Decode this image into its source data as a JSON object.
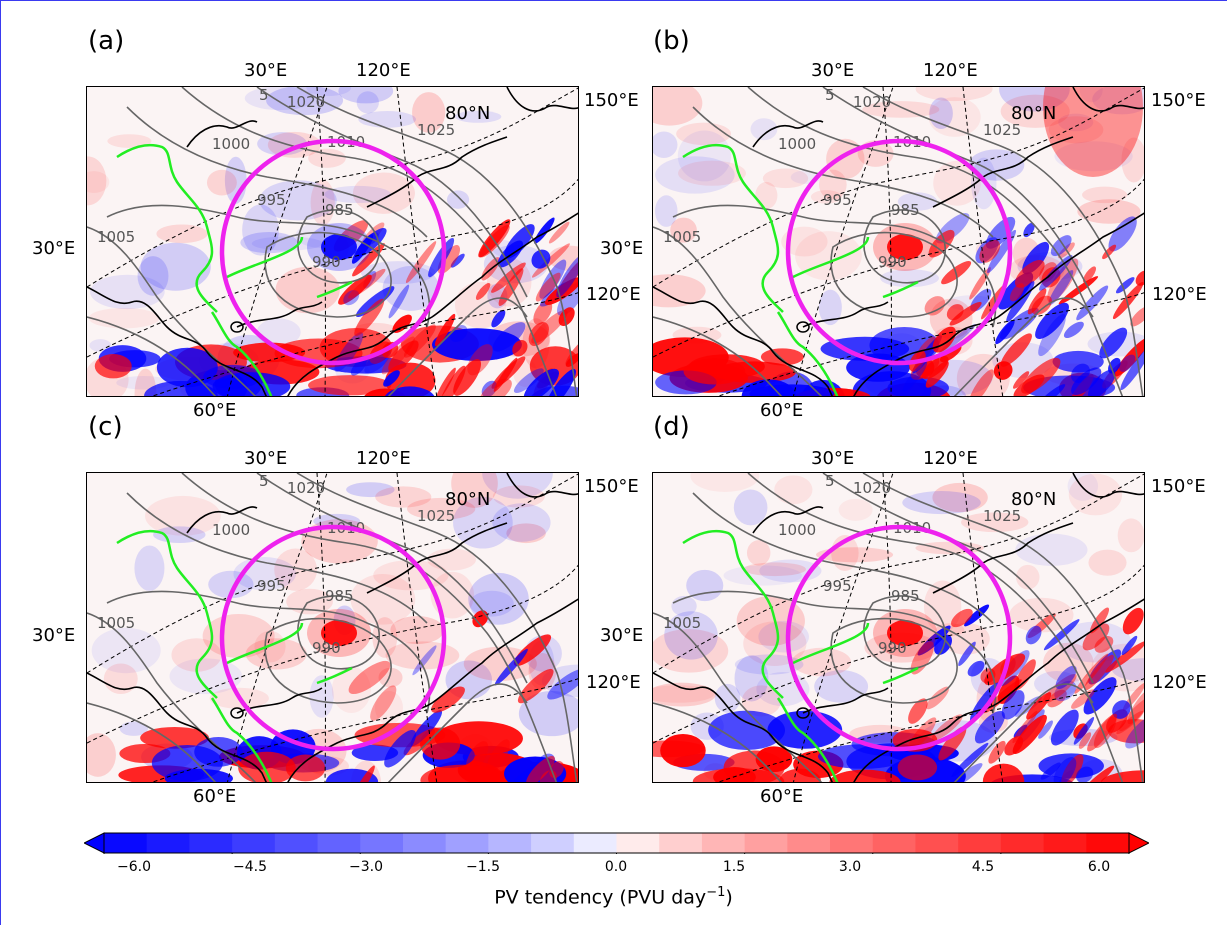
{
  "panels": [
    {
      "label": "(a)",
      "variant": 0
    },
    {
      "label": "(b)",
      "variant": 1
    },
    {
      "label": "(c)",
      "variant": 2
    },
    {
      "label": "(d)",
      "variant": 3
    }
  ],
  "lon_labels": {
    "top_left": "30°E",
    "top_mid": "120°E",
    "top_right": "150°E",
    "left": "30°E",
    "right": "120°E",
    "bottom": "60°E"
  },
  "lat_label": "80°N",
  "isobar_labels": [
    "1020",
    "1025",
    "1010",
    "1000",
    "995",
    "985",
    "990",
    "1005",
    "5"
  ],
  "colorbar": {
    "ticks": [
      "−6.0",
      "−4.5",
      "−3.0",
      "−1.5",
      "0.0",
      "1.5",
      "3.0",
      "4.5",
      "6.0"
    ],
    "min": -6.0,
    "max": 6.0,
    "levels": 24,
    "label_main": "PV tendency (PVU day",
    "label_sup": "−1",
    "label_end": ")"
  },
  "colors": {
    "negative": "#0000ff",
    "positive": "#ff0000",
    "circle": "#ee22ee",
    "coast_green": "#22ee22",
    "isobar": "#666666"
  }
}
